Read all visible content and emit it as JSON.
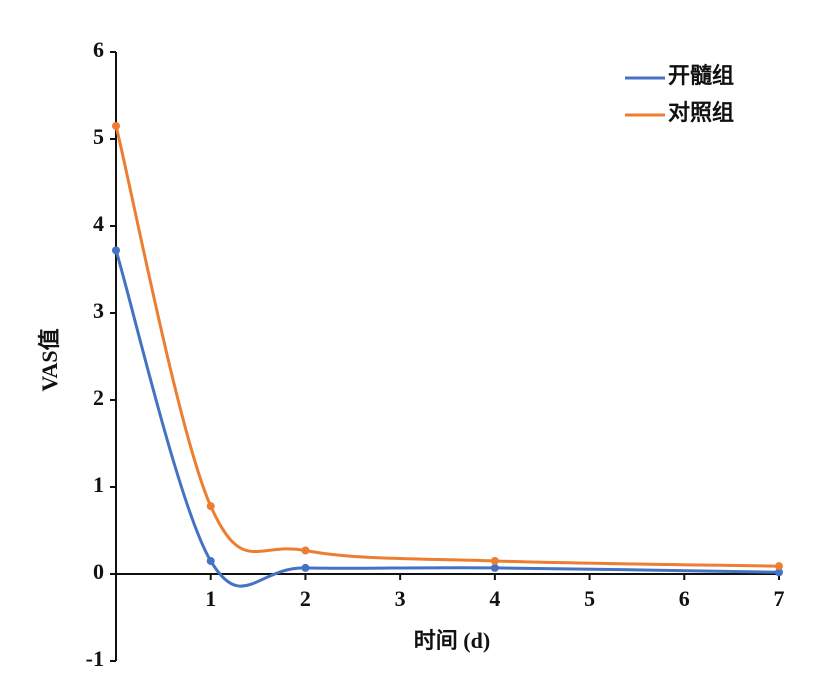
{
  "chart_data": {
    "type": "line",
    "x_label": "时间 (d)",
    "y_label": "VAS值",
    "x": [
      0,
      1,
      2,
      4,
      7
    ],
    "series": [
      {
        "name": "开髓组",
        "color": "#4472c4",
        "values": [
          3.72,
          0.15,
          0.07,
          0.07,
          0.02
        ]
      },
      {
        "name": "对照组",
        "color": "#ed7d31",
        "values": [
          5.15,
          0.78,
          0.27,
          0.15,
          0.09
        ]
      }
    ],
    "xlim": [
      0,
      7
    ],
    "xticks": [
      1,
      2,
      3,
      4,
      5,
      6,
      7
    ],
    "ylim": [
      -1,
      6
    ],
    "yticks": [
      -1,
      0,
      1,
      2,
      3,
      4,
      5,
      6
    ],
    "legend": "upper right"
  }
}
